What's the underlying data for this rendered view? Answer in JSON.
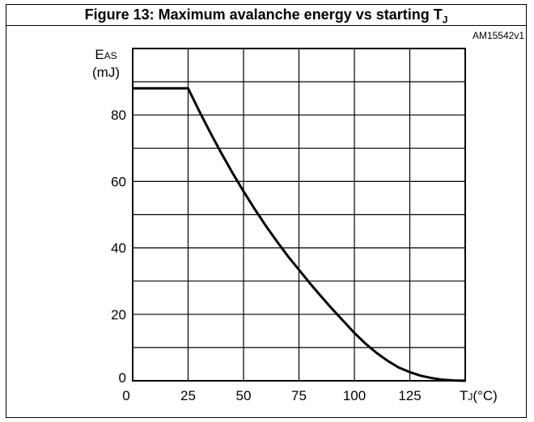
{
  "figure": {
    "title": "Figure 13: Maximum avalanche energy vs starting T",
    "title_sub": "J",
    "code": "AM15542v1"
  },
  "chart_data": {
    "type": "line",
    "title": "Figure 13: Maximum avalanche energy vs starting TJ",
    "ylabel_main": "E",
    "ylabel_sub": "AS",
    "ylabel_unit": "(mJ)",
    "xlabel_main": "T",
    "xlabel_sub": "J",
    "xlabel_unit": "(°C)",
    "xlim": [
      0,
      150
    ],
    "ylim": [
      0,
      100
    ],
    "x_ticks": [
      0,
      25,
      50,
      75,
      100,
      125
    ],
    "y_ticks": [
      0,
      20,
      40,
      60,
      80
    ],
    "x_grid": [
      0,
      25,
      50,
      75,
      100,
      125,
      150
    ],
    "y_grid": [
      0,
      10,
      20,
      30,
      40,
      50,
      60,
      70,
      80,
      90,
      100
    ],
    "grid": true,
    "series": [
      {
        "x": [
          0,
          25,
          30,
          35,
          40,
          45,
          50,
          55,
          60,
          65,
          70,
          75,
          80,
          85,
          90,
          95,
          100,
          105,
          110,
          115,
          120,
          125,
          130,
          135,
          140,
          145,
          150
        ],
        "y": [
          88,
          88,
          81.2,
          74.7,
          68.5,
          62.6,
          57.0,
          51.7,
          46.7,
          42.0,
          37.5,
          33.4,
          29.3,
          25.4,
          21.6,
          18.0,
          14.4,
          11.2,
          8.4,
          6.0,
          4.0,
          2.6,
          1.5,
          0.8,
          0.3,
          0.1,
          0
        ]
      }
    ]
  }
}
